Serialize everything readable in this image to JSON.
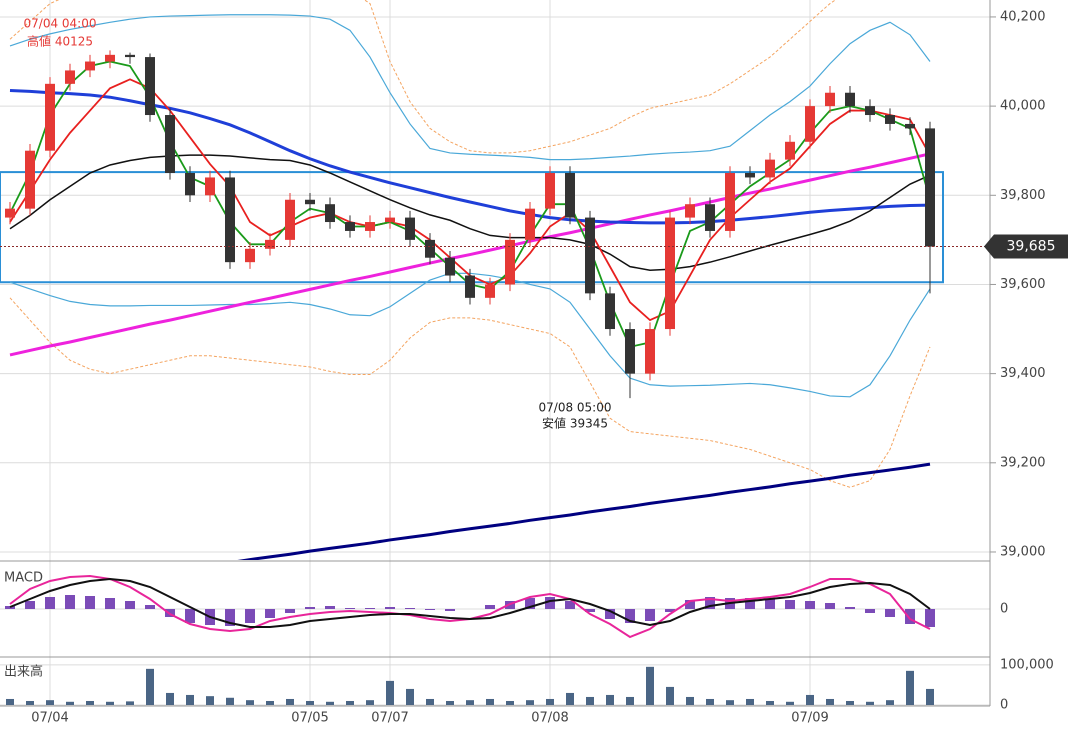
{
  "chart_data": [
    {
      "type": "candlestick",
      "categories": [
        null,
        null,
        "07/04",
        null,
        null,
        null,
        null,
        null,
        null,
        null,
        null,
        null,
        null,
        null,
        null,
        "07/05",
        null,
        null,
        null,
        "07/07",
        null,
        null,
        null,
        null,
        null,
        null,
        null,
        "07/08",
        null,
        null,
        null,
        null,
        null,
        null,
        null,
        null,
        null,
        null,
        null,
        null,
        "07/09",
        null,
        null,
        null,
        null,
        null,
        null
      ],
      "open": [
        39750,
        39770,
        39900,
        40050,
        40080,
        40100,
        40115,
        40110,
        39980,
        39850,
        39800,
        39840,
        39650,
        39680,
        39700,
        39790,
        39780,
        39740,
        39720,
        39740,
        39750,
        39700,
        39660,
        39620,
        39570,
        39600,
        39700,
        39770,
        39850,
        39750,
        39580,
        39500,
        39400,
        39500,
        39750,
        39780,
        39720,
        39850,
        39840,
        39880,
        39920,
        40000,
        40030,
        40000,
        39980,
        39960,
        39950
      ],
      "high": [
        39785,
        39915,
        40065,
        40095,
        40115,
        40125,
        40120,
        40118,
        39995,
        39865,
        39855,
        39855,
        39695,
        39715,
        39805,
        39805,
        39795,
        39755,
        39755,
        39765,
        39765,
        39715,
        39675,
        39635,
        39615,
        39715,
        39785,
        39865,
        39865,
        39765,
        39595,
        39515,
        39515,
        39765,
        39795,
        39795,
        39865,
        39865,
        39895,
        39935,
        40015,
        40045,
        40045,
        40015,
        39995,
        39975,
        39965
      ],
      "low": [
        39735,
        39755,
        39885,
        40035,
        40065,
        40085,
        40095,
        39965,
        39835,
        39785,
        39785,
        39635,
        39635,
        39665,
        39685,
        39765,
        39725,
        39705,
        39705,
        39725,
        39685,
        39645,
        39605,
        39555,
        39555,
        39585,
        39685,
        39755,
        39735,
        39565,
        39485,
        39345,
        39385,
        39485,
        39735,
        39705,
        39705,
        39825,
        39825,
        39865,
        39905,
        39985,
        39985,
        39965,
        39945,
        39935,
        39580
      ],
      "close": [
        39770,
        39900,
        40050,
        40080,
        40100,
        40115,
        40110,
        39980,
        39850,
        39800,
        39840,
        39650,
        39680,
        39700,
        39790,
        39780,
        39740,
        39720,
        39740,
        39750,
        39700,
        39660,
        39620,
        39570,
        39600,
        39700,
        39770,
        39850,
        39750,
        39580,
        39500,
        39400,
        39500,
        39750,
        39780,
        39720,
        39850,
        39840,
        39880,
        39920,
        40000,
        40030,
        40000,
        39980,
        39960,
        39950,
        39685
      ],
      "up_color": "#e53935",
      "down_color": "#333333",
      "lines": [
        {
          "color": "#f4a460",
          "width": 1,
          "dash": true,
          "values": [
            40150,
            40190,
            40230,
            40250,
            40260,
            40265,
            40268,
            40270,
            40272,
            40275,
            40275,
            40275,
            40275,
            40275,
            40275,
            40275,
            40270,
            40260,
            40230,
            40100,
            40010,
            39950,
            39920,
            39900,
            39895,
            39895,
            39900,
            39910,
            39920,
            39935,
            39950,
            39975,
            39995,
            40005,
            40015,
            40025,
            40050,
            40080,
            40110,
            40150,
            40190,
            40230,
            40260,
            40280,
            40290,
            40280,
            40250
          ]
        },
        {
          "color": "#f4a460",
          "width": 1,
          "dash": true,
          "values": [
            39570,
            39520,
            39470,
            39430,
            39410,
            39400,
            39410,
            39420,
            39430,
            39440,
            39440,
            39435,
            39430,
            39425,
            39420,
            39415,
            39405,
            39398,
            39398,
            39430,
            39480,
            39515,
            39525,
            39525,
            39520,
            39510,
            39500,
            39490,
            39460,
            39380,
            39300,
            39270,
            39265,
            39260,
            39255,
            39250,
            39240,
            39230,
            39215,
            39200,
            39185,
            39160,
            39145,
            39160,
            39230,
            39350,
            39460
          ]
        },
        {
          "color": "#4aa8d8",
          "width": 1.2,
          "dash": false,
          "values": [
            40135,
            40150,
            40162,
            40172,
            40180,
            40188,
            40195,
            40200,
            40202,
            40203,
            40204,
            40205,
            40205,
            40205,
            40204,
            40202,
            40195,
            40170,
            40110,
            40030,
            39960,
            39905,
            39895,
            39892,
            39890,
            39888,
            39885,
            39880,
            39880,
            39882,
            39885,
            39888,
            39892,
            39895,
            39897,
            39900,
            39910,
            39945,
            39980,
            40010,
            40045,
            40095,
            40140,
            40170,
            40188,
            40160,
            40100
          ]
        },
        {
          "color": "#4aa8d8",
          "width": 1.2,
          "dash": false,
          "values": [
            39605,
            39590,
            39575,
            39562,
            39555,
            39552,
            39552,
            39553,
            39553,
            39553,
            39554,
            39555,
            39555,
            39557,
            39560,
            39555,
            39545,
            39532,
            39530,
            39550,
            39580,
            39610,
            39625,
            39625,
            39620,
            39612,
            39600,
            39590,
            39560,
            39500,
            39440,
            39390,
            39375,
            39372,
            39373,
            39374,
            39376,
            39378,
            39375,
            39368,
            39360,
            39350,
            39348,
            39375,
            39440,
            39520,
            39590
          ]
        },
        {
          "color": "#000080",
          "width": 3,
          "dash": false,
          "values": [
            38907,
            38913,
            38920,
            38926,
            38932,
            38939,
            38945,
            38951,
            38957,
            38964,
            38970,
            38976,
            38983,
            38989,
            38995,
            39002,
            39008,
            39014,
            39020,
            39027,
            39033,
            39039,
            39046,
            39052,
            39058,
            39064,
            39071,
            39077,
            39083,
            39090,
            39096,
            39102,
            39109,
            39115,
            39121,
            39127,
            39134,
            39140,
            39146,
            39153,
            39159,
            39165,
            39172,
            39178,
            39184,
            39190,
            39197
          ]
        },
        {
          "color": "#ee22dd",
          "width": 3,
          "dash": false,
          "values": [
            39442,
            39452,
            39462,
            39471,
            39481,
            39491,
            39501,
            39511,
            39520,
            39530,
            39540,
            39550,
            39560,
            39569,
            39579,
            39589,
            39599,
            39609,
            39618,
            39628,
            39638,
            39648,
            39658,
            39667,
            39677,
            39687,
            39697,
            39707,
            39716,
            39726,
            39736,
            39746,
            39756,
            39765,
            39775,
            39785,
            39795,
            39805,
            39814,
            39824,
            39834,
            39844,
            39854,
            39863,
            39873,
            39883,
            39893
          ]
        },
        {
          "color": "#1f3fd8",
          "width": 3,
          "dash": false,
          "values": [
            40035,
            40033,
            40030,
            40028,
            40025,
            40020,
            40012,
            40003,
            39995,
            39985,
            39972,
            39958,
            39940,
            39920,
            39900,
            39882,
            39866,
            39852,
            39840,
            39828,
            39817,
            39806,
            39795,
            39785,
            39775,
            39765,
            39757,
            39750,
            39745,
            39742,
            39740,
            39739,
            39738,
            39738,
            39739,
            39741,
            39744,
            39748,
            39752,
            39757,
            39762,
            39766,
            39769,
            39772,
            39775,
            39777,
            39778
          ]
        },
        {
          "color": "#111111",
          "width": 1.5,
          "dash": false,
          "values": [
            39725,
            39755,
            39790,
            39820,
            39850,
            39868,
            39878,
            39885,
            39888,
            39890,
            39890,
            39888,
            39884,
            39880,
            39878,
            39868,
            39850,
            39830,
            39810,
            39790,
            39772,
            39756,
            39744,
            39725,
            39710,
            39705,
            39705,
            39705,
            39700,
            39690,
            39668,
            39640,
            39632,
            39634,
            39640,
            39650,
            39662,
            39675,
            39688,
            39700,
            39712,
            39725,
            39742,
            39765,
            39795,
            39825,
            39845
          ]
        },
        {
          "color": "#e8201f",
          "width": 1.8,
          "dash": false,
          "values": [
            39740,
            39810,
            39880,
            39940,
            39990,
            40040,
            40060,
            40040,
            39990,
            39930,
            39870,
            39820,
            39740,
            39710,
            39730,
            39750,
            39760,
            39740,
            39730,
            39740,
            39730,
            39700,
            39660,
            39620,
            39600,
            39620,
            39670,
            39730,
            39760,
            39720,
            39640,
            39560,
            39520,
            39540,
            39620,
            39700,
            39750,
            39790,
            39830,
            39860,
            39910,
            39960,
            39990,
            39990,
            39980,
            39970,
            39890
          ]
        },
        {
          "color": "#1a9a1a",
          "width": 1.8,
          "dash": false,
          "values": [
            39760,
            39850,
            39980,
            40050,
            40090,
            40100,
            40090,
            40020,
            39920,
            39840,
            39820,
            39740,
            39690,
            39690,
            39740,
            39770,
            39760,
            39730,
            39730,
            39740,
            39720,
            39680,
            39640,
            39600,
            39590,
            39630,
            39710,
            39780,
            39780,
            39680,
            39560,
            39460,
            39470,
            39600,
            39720,
            39740,
            39780,
            39820,
            39850,
            39880,
            39940,
            39990,
            40000,
            39990,
            39970,
            39950,
            39790
          ]
        }
      ],
      "range_box": [
        39605,
        39852
      ],
      "last_price": {
        "value": 39685,
        "label": "39,685"
      },
      "high_annotation": [
        "07/04 04:00",
        "高値 40125"
      ],
      "low_annotation": [
        "07/08 05:00",
        "安値 39345"
      ],
      "ylim": [
        38982,
        40238
      ],
      "yticks": [
        {
          "value": 39000,
          "label": "39,000"
        },
        {
          "value": 39200,
          "label": "39,200"
        },
        {
          "value": 39400,
          "label": "39,400"
        },
        {
          "value": 39600,
          "label": "39,600"
        },
        {
          "value": 39800,
          "label": "39,800"
        },
        {
          "value": 40000,
          "label": "40,000"
        },
        {
          "value": 40200,
          "label": "40,200"
        }
      ],
      "grid": true
    },
    {
      "type": "macd",
      "title": "MACD",
      "histogram": [
        3,
        8,
        12,
        14,
        13,
        11,
        8,
        4,
        -8,
        -14,
        -16,
        -17,
        -14,
        -9,
        -4,
        2,
        3,
        1,
        1,
        2,
        1,
        -1,
        -2,
        0,
        4,
        8,
        11,
        12,
        8,
        -3,
        -10,
        -14,
        -12,
        -3,
        9,
        12,
        11,
        11,
        10,
        9,
        8,
        6,
        2,
        -4,
        -8,
        -15,
        -18
      ],
      "macd": [
        5,
        20,
        28,
        32,
        33,
        30,
        22,
        10,
        -5,
        -15,
        -20,
        -22,
        -20,
        -12,
        -8,
        -5,
        -3,
        -2,
        -3,
        -4,
        -6,
        -10,
        -12,
        -10,
        -5,
        5,
        12,
        15,
        10,
        -5,
        -15,
        -28,
        -20,
        -5,
        8,
        10,
        8,
        10,
        12,
        15,
        22,
        30,
        30,
        25,
        15,
        -10,
        -20
      ],
      "signal": [
        2,
        10,
        18,
        24,
        28,
        30,
        28,
        22,
        12,
        2,
        -8,
        -14,
        -18,
        -18,
        -16,
        -12,
        -10,
        -8,
        -6,
        -5,
        -5,
        -7,
        -9,
        -10,
        -9,
        -4,
        2,
        8,
        10,
        5,
        -2,
        -12,
        -16,
        -12,
        -3,
        3,
        6,
        8,
        10,
        12,
        16,
        22,
        25,
        26,
        24,
        15,
        0
      ],
      "histogram_color": "#7b4bb7",
      "macd_color": "#e8259a",
      "signal_color": "#111111",
      "ylim": [
        -46,
        46
      ],
      "yticks": [
        0
      ]
    },
    {
      "type": "volume",
      "title": "出来高",
      "values": [
        15000,
        10000,
        12000,
        8000,
        10000,
        8000,
        9000,
        90000,
        30000,
        25000,
        22000,
        18000,
        12000,
        10000,
        15000,
        10000,
        8000,
        10000,
        12000,
        60000,
        40000,
        15000,
        10000,
        12000,
        15000,
        10000,
        12000,
        15000,
        30000,
        20000,
        25000,
        20000,
        95000,
        45000,
        20000,
        15000,
        12000,
        15000,
        10000,
        8000,
        25000,
        15000,
        10000,
        8000,
        12000,
        85000,
        40000
      ],
      "color": "#4a6585",
      "ylim": [
        0,
        112000
      ],
      "yticks": [
        {
          "value": 100000,
          "label": "100,000"
        },
        0
      ]
    }
  ]
}
